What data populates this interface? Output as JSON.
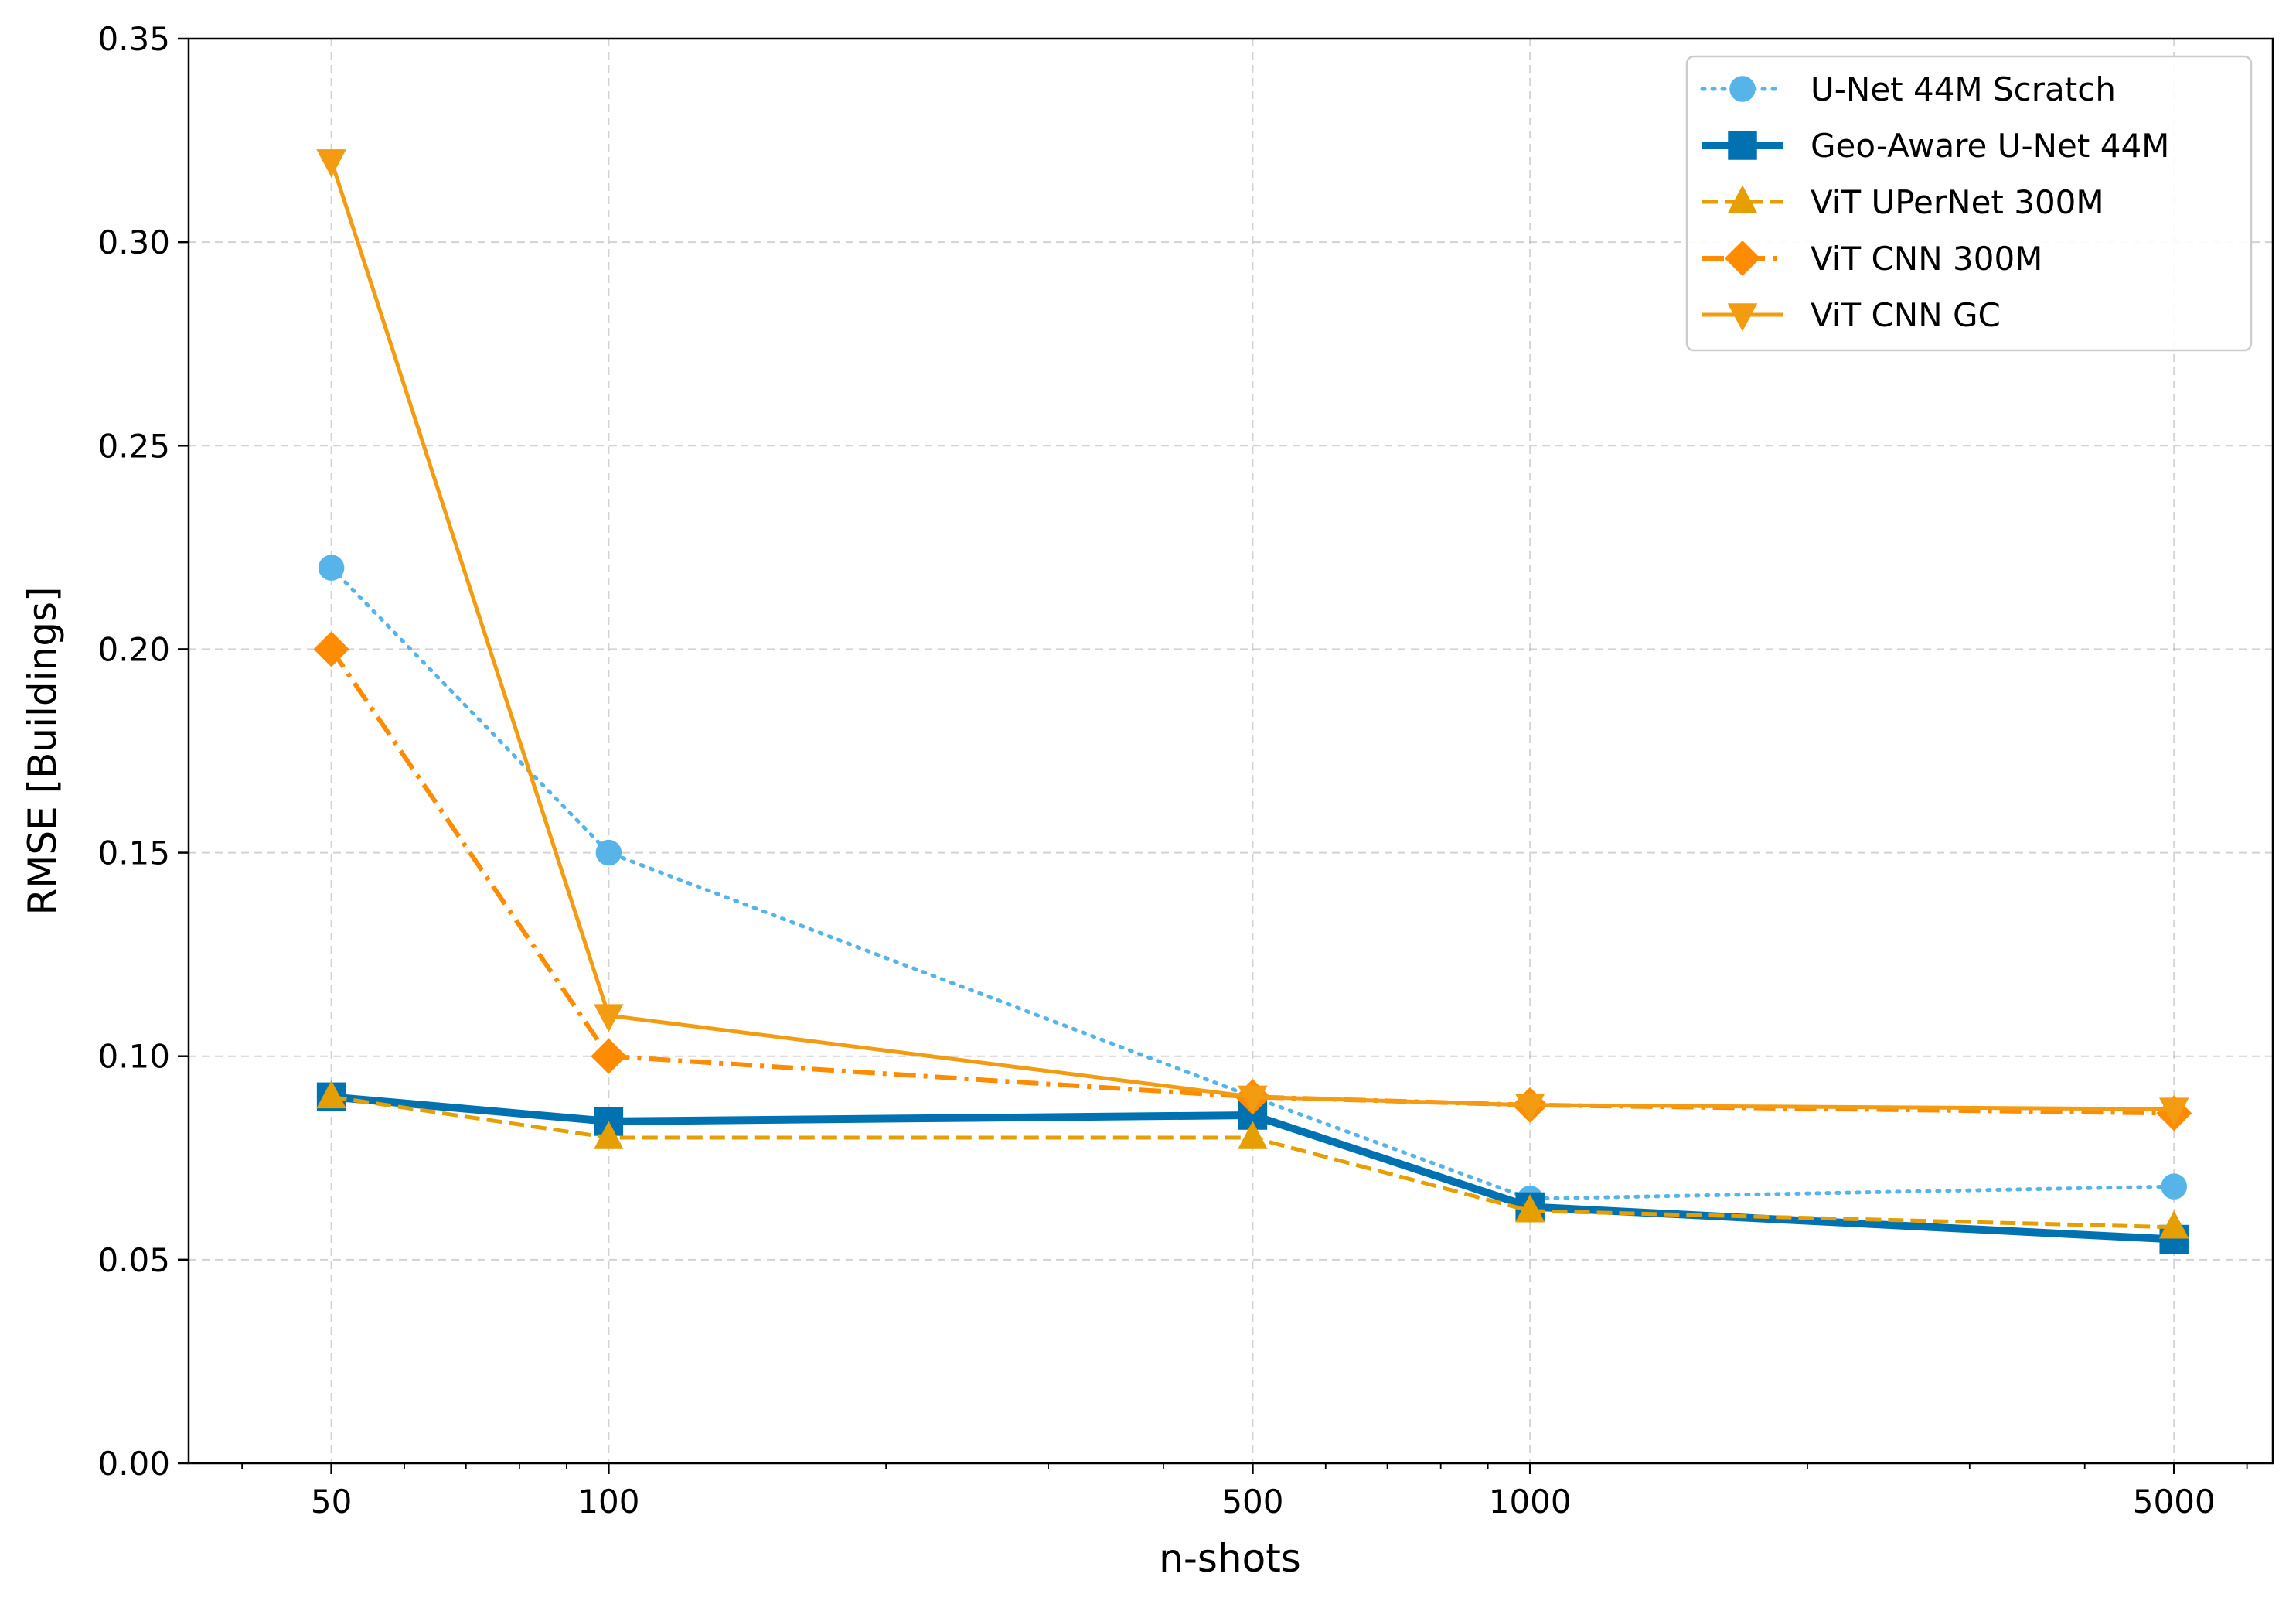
{
  "chart_data": {
    "type": "line",
    "title": "",
    "xlabel": "n-shots",
    "ylabel": "RMSE [Buildings]",
    "xscale": "log",
    "xlim": [
      35,
      6400
    ],
    "ylim": [
      0,
      0.35
    ],
    "x_ticks": [
      50,
      100,
      500,
      1000,
      5000
    ],
    "x_tick_labels": [
      "50",
      "100",
      "500",
      "1000",
      "5000"
    ],
    "y_ticks": [
      0,
      0.05,
      0.1,
      0.15,
      0.2,
      0.25,
      0.3,
      0.35
    ],
    "y_tick_labels": [
      "0.00",
      "0.05",
      "0.10",
      "0.15",
      "0.20",
      "0.25",
      "0.30",
      "0.35"
    ],
    "grid": true,
    "legend_position": "top-right",
    "x": [
      50,
      100,
      500,
      1000,
      5000
    ],
    "series": [
      {
        "name": "U-Net 44M Scratch",
        "values": [
          0.22,
          0.15,
          0.09,
          0.065,
          0.068
        ],
        "color": "#56b4e9",
        "marker": "circle",
        "linestyle": "dotted"
      },
      {
        "name": "Geo-Aware U-Net 44M",
        "values": [
          0.09,
          0.084,
          0.0855,
          0.063,
          0.055
        ],
        "color": "#0072b2",
        "marker": "square",
        "linestyle": "solid-thick"
      },
      {
        "name": "ViT UPerNet 300M",
        "values": [
          0.09,
          0.08,
          0.08,
          0.062,
          0.058
        ],
        "color": "#e69f00",
        "marker": "triangle-up",
        "linestyle": "dashed"
      },
      {
        "name": "ViT CNN 300M",
        "values": [
          0.2,
          0.1,
          0.09,
          0.088,
          0.086
        ],
        "color": "#ff8c00",
        "marker": "diamond",
        "linestyle": "dashdot"
      },
      {
        "name": "ViT CNN GC",
        "values": [
          0.32,
          0.11,
          0.09,
          0.088,
          0.087
        ],
        "color": "#f39c12",
        "marker": "triangle-down",
        "linestyle": "solid"
      }
    ]
  }
}
